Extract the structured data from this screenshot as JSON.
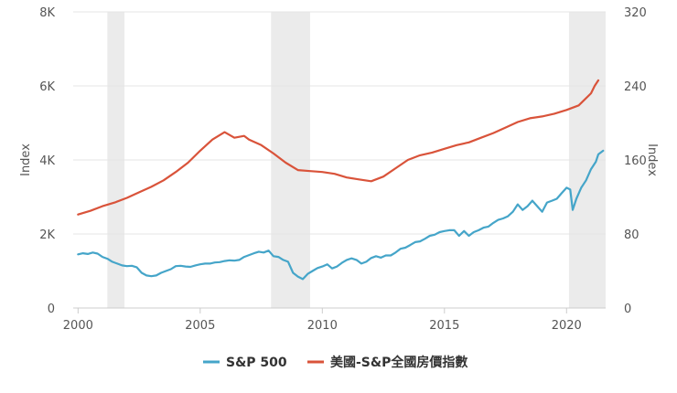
{
  "chart_data": {
    "type": "line",
    "x_axis": {
      "range": [
        1999.8,
        2021.6
      ],
      "ticks": [
        2000,
        2005,
        2010,
        2015,
        2020
      ],
      "tick_labels": [
        "2000",
        "2005",
        "2010",
        "2015",
        "2020"
      ]
    },
    "y_axis_left": {
      "title": "Index",
      "range": [
        0,
        8000
      ],
      "ticks": [
        0,
        2000,
        4000,
        6000,
        8000
      ],
      "tick_labels": [
        "0",
        "2K",
        "4K",
        "6K",
        "8K"
      ]
    },
    "y_axis_right": {
      "title": "Index",
      "range": [
        0,
        320
      ],
      "ticks": [
        0,
        80,
        160,
        240,
        320
      ],
      "tick_labels": [
        "0",
        "80",
        "160",
        "240",
        "320"
      ]
    },
    "grid": true,
    "recessions": [
      [
        2001.2,
        2001.9
      ],
      [
        2007.9,
        2009.5
      ],
      [
        2020.1,
        2021.6
      ]
    ],
    "series": [
      {
        "name": "S&P 500",
        "axis": "left",
        "color": "#45a5c9",
        "points": [
          [
            2000.0,
            1450
          ],
          [
            2000.2,
            1480
          ],
          [
            2000.4,
            1460
          ],
          [
            2000.6,
            1500
          ],
          [
            2000.8,
            1470
          ],
          [
            2001.0,
            1380
          ],
          [
            2001.2,
            1330
          ],
          [
            2001.4,
            1250
          ],
          [
            2001.6,
            1200
          ],
          [
            2001.8,
            1150
          ],
          [
            2002.0,
            1130
          ],
          [
            2002.2,
            1140
          ],
          [
            2002.4,
            1100
          ],
          [
            2002.6,
            950
          ],
          [
            2002.8,
            880
          ],
          [
            2003.0,
            860
          ],
          [
            2003.2,
            880
          ],
          [
            2003.4,
            950
          ],
          [
            2003.6,
            1000
          ],
          [
            2003.8,
            1050
          ],
          [
            2004.0,
            1130
          ],
          [
            2004.2,
            1140
          ],
          [
            2004.4,
            1120
          ],
          [
            2004.6,
            1110
          ],
          [
            2004.8,
            1150
          ],
          [
            2005.0,
            1180
          ],
          [
            2005.2,
            1200
          ],
          [
            2005.4,
            1200
          ],
          [
            2005.6,
            1230
          ],
          [
            2005.8,
            1240
          ],
          [
            2006.0,
            1270
          ],
          [
            2006.2,
            1290
          ],
          [
            2006.4,
            1280
          ],
          [
            2006.6,
            1300
          ],
          [
            2006.8,
            1380
          ],
          [
            2007.0,
            1430
          ],
          [
            2007.2,
            1480
          ],
          [
            2007.4,
            1520
          ],
          [
            2007.6,
            1500
          ],
          [
            2007.8,
            1550
          ],
          [
            2008.0,
            1400
          ],
          [
            2008.2,
            1380
          ],
          [
            2008.4,
            1300
          ],
          [
            2008.6,
            1250
          ],
          [
            2008.8,
            950
          ],
          [
            2009.0,
            850
          ],
          [
            2009.2,
            780
          ],
          [
            2009.4,
            920
          ],
          [
            2009.6,
            1000
          ],
          [
            2009.8,
            1080
          ],
          [
            2010.0,
            1120
          ],
          [
            2010.2,
            1180
          ],
          [
            2010.4,
            1070
          ],
          [
            2010.6,
            1120
          ],
          [
            2010.8,
            1220
          ],
          [
            2011.0,
            1300
          ],
          [
            2011.2,
            1340
          ],
          [
            2011.4,
            1300
          ],
          [
            2011.6,
            1200
          ],
          [
            2011.8,
            1250
          ],
          [
            2012.0,
            1350
          ],
          [
            2012.2,
            1400
          ],
          [
            2012.4,
            1360
          ],
          [
            2012.6,
            1420
          ],
          [
            2012.8,
            1420
          ],
          [
            2013.0,
            1500
          ],
          [
            2013.2,
            1600
          ],
          [
            2013.4,
            1630
          ],
          [
            2013.6,
            1700
          ],
          [
            2013.8,
            1780
          ],
          [
            2014.0,
            1800
          ],
          [
            2014.2,
            1870
          ],
          [
            2014.4,
            1950
          ],
          [
            2014.6,
            1980
          ],
          [
            2014.8,
            2050
          ],
          [
            2015.0,
            2080
          ],
          [
            2015.2,
            2100
          ],
          [
            2015.4,
            2100
          ],
          [
            2015.6,
            1950
          ],
          [
            2015.8,
            2080
          ],
          [
            2016.0,
            1950
          ],
          [
            2016.2,
            2050
          ],
          [
            2016.4,
            2100
          ],
          [
            2016.6,
            2170
          ],
          [
            2016.8,
            2200
          ],
          [
            2017.0,
            2300
          ],
          [
            2017.2,
            2380
          ],
          [
            2017.4,
            2420
          ],
          [
            2017.6,
            2480
          ],
          [
            2017.8,
            2600
          ],
          [
            2018.0,
            2800
          ],
          [
            2018.2,
            2650
          ],
          [
            2018.4,
            2750
          ],
          [
            2018.6,
            2900
          ],
          [
            2018.8,
            2750
          ],
          [
            2019.0,
            2600
          ],
          [
            2019.2,
            2850
          ],
          [
            2019.4,
            2900
          ],
          [
            2019.6,
            2950
          ],
          [
            2019.8,
            3100
          ],
          [
            2020.0,
            3250
          ],
          [
            2020.15,
            3200
          ],
          [
            2020.25,
            2650
          ],
          [
            2020.4,
            2950
          ],
          [
            2020.6,
            3250
          ],
          [
            2020.8,
            3450
          ],
          [
            2021.0,
            3750
          ],
          [
            2021.2,
            3950
          ],
          [
            2021.3,
            4150
          ],
          [
            2021.5,
            4250
          ]
        ]
      },
      {
        "name": "美國-S&P全國房價指數",
        "axis": "right",
        "color": "#d9533a",
        "points": [
          [
            2000.0,
            101
          ],
          [
            2000.5,
            105
          ],
          [
            2001.0,
            110
          ],
          [
            2001.5,
            114
          ],
          [
            2002.0,
            119
          ],
          [
            2002.5,
            125
          ],
          [
            2003.0,
            131
          ],
          [
            2003.5,
            138
          ],
          [
            2004.0,
            147
          ],
          [
            2004.5,
            157
          ],
          [
            2005.0,
            170
          ],
          [
            2005.5,
            182
          ],
          [
            2006.0,
            190
          ],
          [
            2006.4,
            184
          ],
          [
            2006.8,
            186
          ],
          [
            2007.0,
            182
          ],
          [
            2007.5,
            176
          ],
          [
            2008.0,
            167
          ],
          [
            2008.5,
            157
          ],
          [
            2009.0,
            149
          ],
          [
            2009.5,
            148
          ],
          [
            2010.0,
            147
          ],
          [
            2010.5,
            145
          ],
          [
            2011.0,
            141
          ],
          [
            2011.5,
            139
          ],
          [
            2012.0,
            137
          ],
          [
            2012.5,
            142
          ],
          [
            2013.0,
            151
          ],
          [
            2013.5,
            160
          ],
          [
            2014.0,
            165
          ],
          [
            2014.5,
            168
          ],
          [
            2015.0,
            172
          ],
          [
            2015.5,
            176
          ],
          [
            2016.0,
            179
          ],
          [
            2016.5,
            184
          ],
          [
            2017.0,
            189
          ],
          [
            2017.5,
            195
          ],
          [
            2018.0,
            201
          ],
          [
            2018.5,
            205
          ],
          [
            2019.0,
            207
          ],
          [
            2019.5,
            210
          ],
          [
            2020.0,
            214
          ],
          [
            2020.5,
            219
          ],
          [
            2021.0,
            232
          ],
          [
            2021.15,
            240
          ],
          [
            2021.3,
            246
          ]
        ]
      }
    ],
    "legend": {
      "position": "bottom-center",
      "entries": [
        "S&P 500",
        "美國-S&P全國房價指數"
      ]
    }
  }
}
